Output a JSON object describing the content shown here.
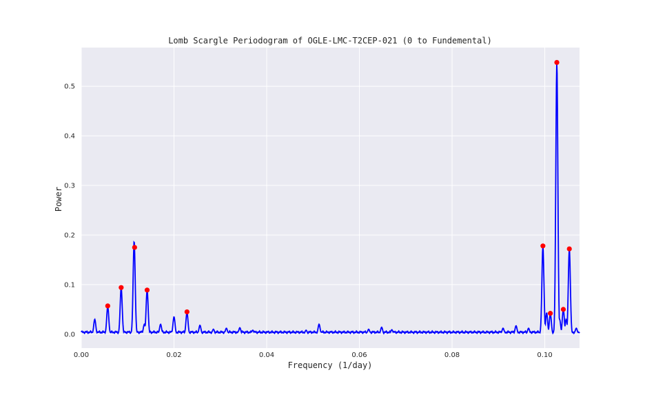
{
  "chart_data": {
    "type": "line",
    "title": "Lomb Scargle Periodogram of OGLE-LMC-T2CEP-021 (0 to Fundemental)",
    "xlabel": "Frequency (1/day)",
    "ylabel": "Power",
    "xlim": [
      0.0,
      0.1075
    ],
    "ylim": [
      -0.028,
      0.578
    ],
    "xticks": [
      0.0,
      0.02,
      0.04,
      0.06,
      0.08,
      0.1
    ],
    "xtick_labels": [
      "0.00",
      "0.02",
      "0.04",
      "0.06",
      "0.08",
      "0.10"
    ],
    "yticks": [
      0.0,
      0.1,
      0.2,
      0.3,
      0.4,
      0.5
    ],
    "ytick_labels": [
      "0.0",
      "0.1",
      "0.2",
      "0.3",
      "0.4",
      "0.5"
    ],
    "grid": true,
    "background": "#eaeaf2",
    "line_color": "#0000ff",
    "marker_color": "#ff0000",
    "baseline_power": 0.004,
    "peaks": [
      {
        "x": 0.0029,
        "y": 0.03
      },
      {
        "x": 0.0057,
        "y": 0.056
      },
      {
        "x": 0.0086,
        "y": 0.094
      },
      {
        "x": 0.0114,
        "y": 0.188
      },
      {
        "x": 0.0136,
        "y": 0.02
      },
      {
        "x": 0.0142,
        "y": 0.089
      },
      {
        "x": 0.0171,
        "y": 0.02
      },
      {
        "x": 0.02,
        "y": 0.035
      },
      {
        "x": 0.0228,
        "y": 0.044
      },
      {
        "x": 0.0256,
        "y": 0.018
      },
      {
        "x": 0.0285,
        "y": 0.01
      },
      {
        "x": 0.0313,
        "y": 0.012
      },
      {
        "x": 0.0342,
        "y": 0.013
      },
      {
        "x": 0.037,
        "y": 0.008
      },
      {
        "x": 0.0485,
        "y": 0.008
      },
      {
        "x": 0.0513,
        "y": 0.02
      },
      {
        "x": 0.062,
        "y": 0.01
      },
      {
        "x": 0.0648,
        "y": 0.014
      },
      {
        "x": 0.067,
        "y": 0.009
      },
      {
        "x": 0.091,
        "y": 0.012
      },
      {
        "x": 0.0938,
        "y": 0.017
      },
      {
        "x": 0.0965,
        "y": 0.012
      },
      {
        "x": 0.0996,
        "y": 0.178
      },
      {
        "x": 0.1004,
        "y": 0.043
      },
      {
        "x": 0.1012,
        "y": 0.041
      },
      {
        "x": 0.1026,
        "y": 0.548
      },
      {
        "x": 0.1032,
        "y": 0.03
      },
      {
        "x": 0.104,
        "y": 0.05
      },
      {
        "x": 0.1046,
        "y": 0.03
      },
      {
        "x": 0.1053,
        "y": 0.172
      },
      {
        "x": 0.1068,
        "y": 0.012
      }
    ],
    "markers": [
      {
        "x": 0.0057,
        "y": 0.057
      },
      {
        "x": 0.0086,
        "y": 0.094
      },
      {
        "x": 0.0115,
        "y": 0.175
      },
      {
        "x": 0.0142,
        "y": 0.089
      },
      {
        "x": 0.0228,
        "y": 0.045
      },
      {
        "x": 0.0996,
        "y": 0.178
      },
      {
        "x": 0.1012,
        "y": 0.042
      },
      {
        "x": 0.1026,
        "y": 0.548
      },
      {
        "x": 0.104,
        "y": 0.05
      },
      {
        "x": 0.1053,
        "y": 0.172
      }
    ]
  }
}
